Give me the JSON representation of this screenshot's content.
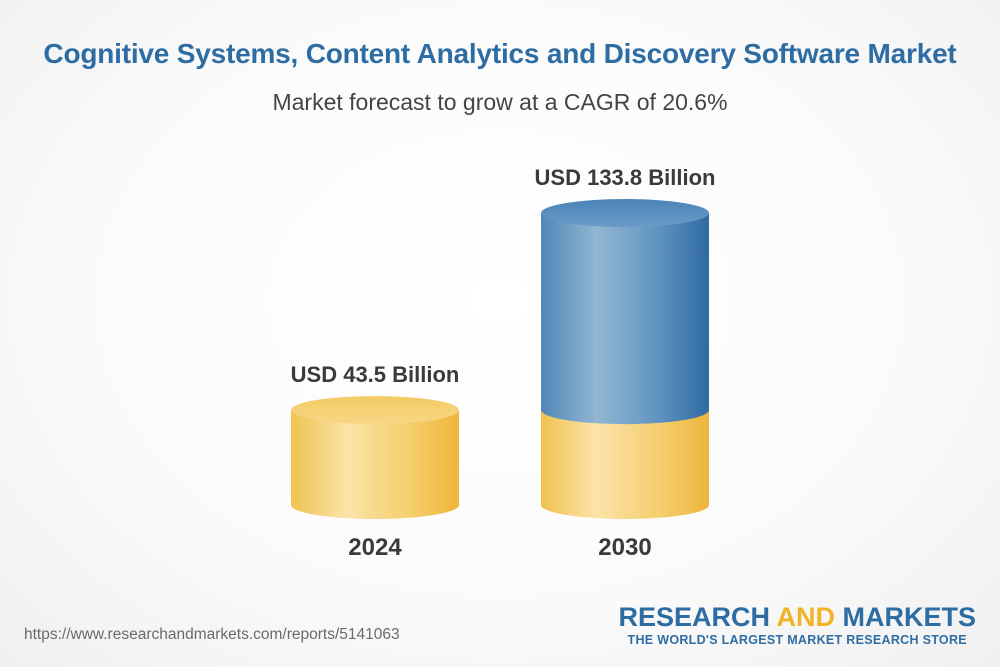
{
  "header": {
    "title": "Cognitive Systems, Content Analytics and Discovery Software Market",
    "subtitle": "Market forecast to grow at a CAGR of 20.6%"
  },
  "chart_data": {
    "type": "bar",
    "style": "3d-cylinder",
    "title": "Cognitive Systems, Content Analytics and Discovery Software Market",
    "subtitle": "Market forecast to grow at a CAGR of 20.6%",
    "categories": [
      "2024",
      "2030"
    ],
    "values": [
      43.5,
      133.8
    ],
    "value_labels": [
      "USD 43.5 Billion",
      "USD 133.8 Billion"
    ],
    "unit": "USD Billion",
    "cagr_percent": 20.6,
    "grid": false,
    "legend": "none",
    "colors": {
      "base_segment": "#f0c050",
      "growth_segment": "#3f7db3"
    }
  },
  "footer": {
    "url": "https://www.researchandmarkets.com/reports/5141063",
    "logo_primary": "RESEARCH",
    "logo_accent": "AND",
    "logo_secondary": "MARKETS",
    "logo_tagline": "THE WORLD'S LARGEST MARKET RESEARCH STORE"
  }
}
